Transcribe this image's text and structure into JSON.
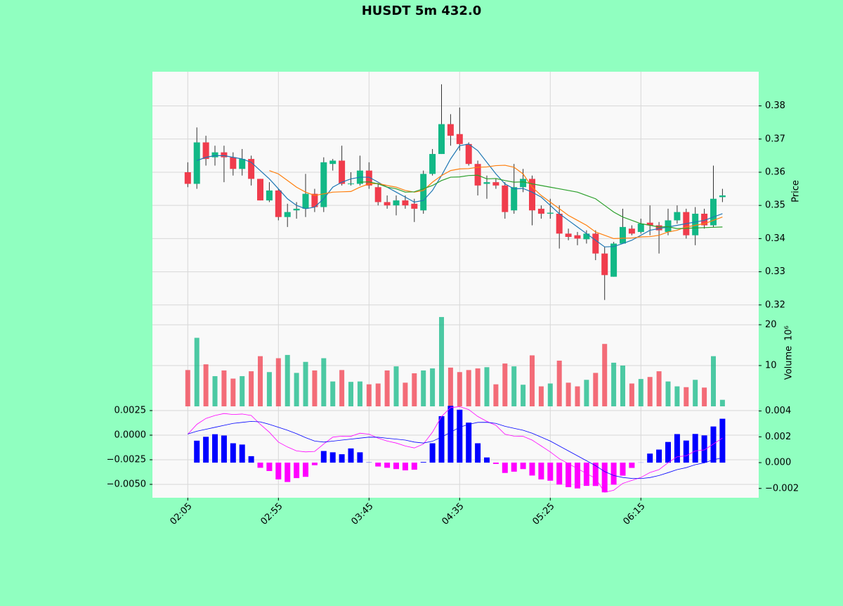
{
  "chart_data": [
    {
      "type": "candlestick",
      "title": "HUSDT 5m 432.0",
      "ylabel": "Price",
      "up_color": "#12b886",
      "down_color": "#f03c4c",
      "open": [
        0.36,
        0.3565,
        0.369,
        0.3645,
        0.366,
        0.3645,
        0.361,
        0.364,
        0.358,
        0.3515,
        0.3545,
        0.3465,
        0.3485,
        0.349,
        0.3535,
        0.3495,
        0.3625,
        0.3635,
        0.3565,
        0.3565,
        0.3605,
        0.3555,
        0.351,
        0.35,
        0.3515,
        0.3505,
        0.3485,
        0.3595,
        0.3655,
        0.3745,
        0.3715,
        0.3685,
        0.3625,
        0.3565,
        0.357,
        0.356,
        0.3485,
        0.3555,
        0.358,
        0.349,
        0.3475,
        0.3475,
        0.3415,
        0.341,
        0.3398,
        0.3415,
        0.3355,
        0.3285,
        0.3385,
        0.343,
        0.342,
        0.3448,
        0.344,
        0.342,
        0.3455,
        0.348,
        0.341,
        0.3475,
        0.344,
        0.3525
      ],
      "high": [
        0.363,
        0.3735,
        0.371,
        0.368,
        0.368,
        0.366,
        0.367,
        0.365,
        0.358,
        0.357,
        0.355,
        0.3505,
        0.351,
        0.3595,
        0.355,
        0.3645,
        0.364,
        0.368,
        0.36,
        0.365,
        0.363,
        0.3565,
        0.353,
        0.353,
        0.353,
        0.352,
        0.3605,
        0.367,
        0.3865,
        0.3775,
        0.3795,
        0.369,
        0.3635,
        0.359,
        0.358,
        0.357,
        0.3625,
        0.361,
        0.359,
        0.35,
        0.352,
        0.35,
        0.343,
        0.342,
        0.3425,
        0.3425,
        0.3375,
        0.339,
        0.349,
        0.344,
        0.346,
        0.35,
        0.345,
        0.349,
        0.35,
        0.349,
        0.3495,
        0.349,
        0.362,
        0.355
      ],
      "low": [
        0.3555,
        0.355,
        0.362,
        0.362,
        0.357,
        0.359,
        0.359,
        0.356,
        0.3515,
        0.351,
        0.3455,
        0.3435,
        0.346,
        0.3465,
        0.348,
        0.348,
        0.3605,
        0.356,
        0.356,
        0.356,
        0.355,
        0.35,
        0.349,
        0.347,
        0.349,
        0.345,
        0.3475,
        0.359,
        0.3655,
        0.368,
        0.3665,
        0.362,
        0.353,
        0.352,
        0.355,
        0.346,
        0.3475,
        0.354,
        0.344,
        0.346,
        0.346,
        0.337,
        0.3395,
        0.338,
        0.3385,
        0.3335,
        0.3215,
        0.3285,
        0.3385,
        0.341,
        0.3415,
        0.341,
        0.3355,
        0.341,
        0.3445,
        0.34,
        0.338,
        0.343,
        0.3435,
        0.351
      ],
      "close": [
        0.3565,
        0.369,
        0.364,
        0.366,
        0.3645,
        0.361,
        0.364,
        0.358,
        0.3515,
        0.3545,
        0.3465,
        0.348,
        0.349,
        0.3535,
        0.3495,
        0.363,
        0.3635,
        0.3565,
        0.3566,
        0.3605,
        0.356,
        0.351,
        0.35,
        0.3515,
        0.35,
        0.349,
        0.3595,
        0.3655,
        0.3745,
        0.371,
        0.3685,
        0.3625,
        0.356,
        0.357,
        0.356,
        0.348,
        0.3555,
        0.358,
        0.3485,
        0.3475,
        0.3478,
        0.3415,
        0.3405,
        0.34,
        0.3415,
        0.3355,
        0.329,
        0.3385,
        0.3435,
        0.3415,
        0.3445,
        0.344,
        0.3425,
        0.3455,
        0.348,
        0.341,
        0.3475,
        0.344,
        0.352,
        0.353
      ],
      "series": [
        {
          "color": "#1f77b4",
          "values": [
            null,
            0.3635,
            0.3645,
            0.365,
            0.365,
            0.3645,
            0.364,
            0.363,
            0.3605,
            0.358,
            0.355,
            0.352,
            0.35,
            0.349,
            0.3495,
            0.352,
            0.3555,
            0.357,
            0.358,
            0.3585,
            0.3585,
            0.357,
            0.3555,
            0.354,
            0.3525,
            0.351,
            0.3515,
            0.3545,
            0.359,
            0.364,
            0.368,
            0.3685,
            0.3665,
            0.363,
            0.3595,
            0.3565,
            0.355,
            0.3551,
            0.354,
            0.3525,
            0.35,
            0.3475,
            0.3455,
            0.3435,
            0.3415,
            0.3395,
            0.3375,
            0.3376,
            0.3385,
            0.3395,
            0.341,
            0.3425,
            0.343,
            0.3435,
            0.344,
            0.3445,
            0.345,
            0.3455,
            0.3465,
            0.3475
          ]
        },
        {
          "color": "#ff7f0e",
          "values": [
            null,
            null,
            null,
            null,
            null,
            null,
            null,
            null,
            null,
            0.3605,
            0.3595,
            0.3575,
            0.3555,
            0.354,
            0.353,
            0.3535,
            0.354,
            0.3541,
            0.3542,
            0.3555,
            0.3565,
            0.3566,
            0.356,
            0.3555,
            0.3545,
            0.354,
            0.3545,
            0.357,
            0.359,
            0.3605,
            0.361,
            0.3611,
            0.3615,
            0.3616,
            0.362,
            0.3621,
            0.3615,
            0.3595,
            0.3555,
            0.353,
            0.351,
            0.349,
            0.347,
            0.3455,
            0.344,
            0.342,
            0.341,
            0.34,
            0.3401,
            0.3402,
            0.3405,
            0.3406,
            0.341,
            0.342,
            0.3425,
            0.3435,
            0.344,
            0.3445,
            0.3455,
            0.3465
          ]
        },
        {
          "color": "#2ca02c",
          "values": [
            null,
            null,
            null,
            null,
            null,
            null,
            null,
            null,
            null,
            null,
            null,
            null,
            null,
            null,
            null,
            null,
            null,
            null,
            null,
            0.357,
            0.3571,
            0.3565,
            0.3555,
            0.355,
            0.354,
            0.3541,
            0.355,
            0.356,
            0.3575,
            0.3585,
            0.3586,
            0.359,
            0.3591,
            0.358,
            0.3581,
            0.3575,
            0.357,
            0.3571,
            0.3565,
            0.356,
            0.3555,
            0.355,
            0.3545,
            0.354,
            0.353,
            0.352,
            0.35,
            0.348,
            0.3465,
            0.3455,
            0.3445,
            0.344,
            0.3435,
            0.3436,
            0.343,
            0.3431,
            0.3432,
            0.3433,
            0.3434,
            0.3435
          ]
        }
      ],
      "xlim": [
        -3.9,
        63
      ],
      "xticks": [
        {
          "value": 0,
          "label": "02:05"
        },
        {
          "value": 10,
          "label": "02:55"
        },
        {
          "value": 20,
          "label": "03:45"
        },
        {
          "value": 30,
          "label": "04:35"
        },
        {
          "value": 40,
          "label": "05:25"
        },
        {
          "value": 50,
          "label": "06:15"
        }
      ],
      "ylim": [
        0.3155,
        0.3903
      ],
      "yticks": [
        0.32,
        0.33,
        0.34,
        0.35,
        0.36,
        0.37,
        0.38
      ],
      "grid": true
    },
    {
      "type": "bar",
      "ylabel": "Volume",
      "scale_label": "10⁶",
      "values": [
        8.9,
        16.8,
        10.3,
        7.4,
        8.8,
        6.8,
        7.4,
        8.6,
        12.3,
        8.4,
        11.8,
        12.6,
        8.2,
        10.9,
        8.8,
        11.8,
        6.1,
        8.9,
        6.0,
        6.1,
        5.4,
        5.6,
        8.8,
        9.8,
        5.8,
        8.1,
        8.8,
        9.3,
        21.9,
        9.5,
        8.4,
        8.9,
        9.3,
        9.6,
        5.4,
        10.5,
        9.8,
        5.3,
        12.5,
        4.9,
        5.6,
        11.2,
        5.8,
        4.9,
        6.5,
        8.2,
        15.3,
        10.7,
        10.0,
        5.6,
        6.7,
        7.2,
        8.6,
        6.1,
        4.9,
        4.7,
        6.5,
        4.6,
        12.3,
        1.6
      ],
      "ylim": [
        0,
        21.2
      ],
      "yticks": [
        10,
        20
      ],
      "grid": true
    },
    {
      "type": "macd",
      "series": [
        {
          "color": "#ff00ff",
          "values": [
            0.0001,
            0.0011,
            0.0017,
            0.002,
            0.0022,
            0.0021,
            0.00215,
            0.002,
            0.0011,
            0.0003,
            -0.0007,
            -0.0012,
            -0.0016,
            -0.0017,
            -0.00165,
            -0.0009,
            -0.0002,
            -0.0001,
            -0.00011,
            0.0002,
            0.0001,
            -0.0003,
            -0.0006,
            -0.0008,
            -0.0011,
            -0.0013,
            -0.0009,
            0.0003,
            0.0019,
            0.0028,
            0.0029,
            0.0026,
            0.0019,
            0.0014,
            0.001,
            0.0001,
            -0.0001,
            -0.00012,
            -0.0005,
            -0.0011,
            -0.0017,
            -0.0024,
            -0.0029,
            -0.0034,
            -0.0039,
            -0.0044,
            -0.0058,
            -0.0056,
            -0.0049,
            -0.0046,
            -0.0043,
            -0.0038,
            -0.0035,
            -0.0028,
            -0.0022,
            -0.0021,
            -0.0016,
            -0.0015,
            -0.0009,
            -0.0003
          ]
        },
        {
          "color": "#0000ff",
          "values": [
            0.00012,
            0.0004,
            0.0006,
            0.0008,
            0.001,
            0.0012,
            0.0013,
            0.0014,
            0.00135,
            0.0011,
            0.0008,
            0.0005,
            0.00015,
            -0.00025,
            -0.0006,
            -0.0007,
            -0.00061,
            -0.0005,
            -0.0004,
            -0.0003,
            -0.0002,
            -0.00021,
            -0.00031,
            -0.0004,
            -0.0005,
            -0.0007,
            -0.0008,
            -0.00062,
            -0.0002,
            0.0003,
            0.0008,
            0.0011,
            0.0013,
            0.00131,
            0.0012,
            0.0009,
            0.0007,
            0.0005,
            0.0002,
            -0.0002,
            -0.0006,
            -0.0011,
            -0.0016,
            -0.0021,
            -0.0026,
            -0.0031,
            -0.0037,
            -0.0041,
            -0.0043,
            -0.0044,
            -0.00441,
            -0.00431,
            -0.0041,
            -0.00381,
            -0.0035,
            -0.0033,
            -0.003,
            -0.00281,
            -0.0025,
            -0.0023
          ]
        }
      ],
      "histogram": {
        "axis": "y2",
        "pos_color": "#0000ff",
        "neg_color": "#ff00ff",
        "values": [
          null,
          0.0017,
          0.002,
          0.0022,
          0.0021,
          0.0015,
          0.0014,
          0.0005,
          -0.0004,
          -0.00065,
          -0.0013,
          -0.0015,
          -0.0012,
          -0.0011,
          -0.0002,
          0.0009,
          0.0008,
          0.00065,
          0.0011,
          0.0008,
          2e-05,
          -0.0003,
          -0.0004,
          -0.0005,
          -0.0006,
          -0.00055,
          5e-05,
          0.0015,
          0.0036,
          0.0044,
          0.0041,
          0.0031,
          0.0015,
          0.0004,
          -0.0001,
          -0.0008,
          -0.0007,
          -0.0005,
          -0.001,
          -0.0013,
          -0.0014,
          -0.0017,
          -0.0019,
          -0.002,
          -0.0018,
          -0.00181,
          -0.0023,
          -0.00171,
          -0.00101,
          -0.00041,
          1e-05,
          0.0007,
          0.00101,
          0.0016,
          0.00221,
          0.00171,
          0.00222,
          0.00211,
          0.0028,
          0.0034
        ]
      },
      "ylim": [
        -0.00636,
        0.00293
      ],
      "yticks": [
        {
          "value": 0.0025,
          "label": "0.0025"
        },
        {
          "value": 0,
          "label": "0.0000"
        },
        {
          "value": -0.0025,
          "label": "−0.0025"
        },
        {
          "value": -0.005,
          "label": "−0.0050"
        }
      ],
      "y2lim": [
        -0.00272,
        0.00436
      ],
      "y2ticks": [
        {
          "value": 0.004,
          "label": "0.004"
        },
        {
          "value": 0.002,
          "label": "0.002"
        },
        {
          "value": 0,
          "label": "0.000"
        },
        {
          "value": -0.002,
          "label": "−0.002"
        }
      ],
      "grid": true
    }
  ]
}
